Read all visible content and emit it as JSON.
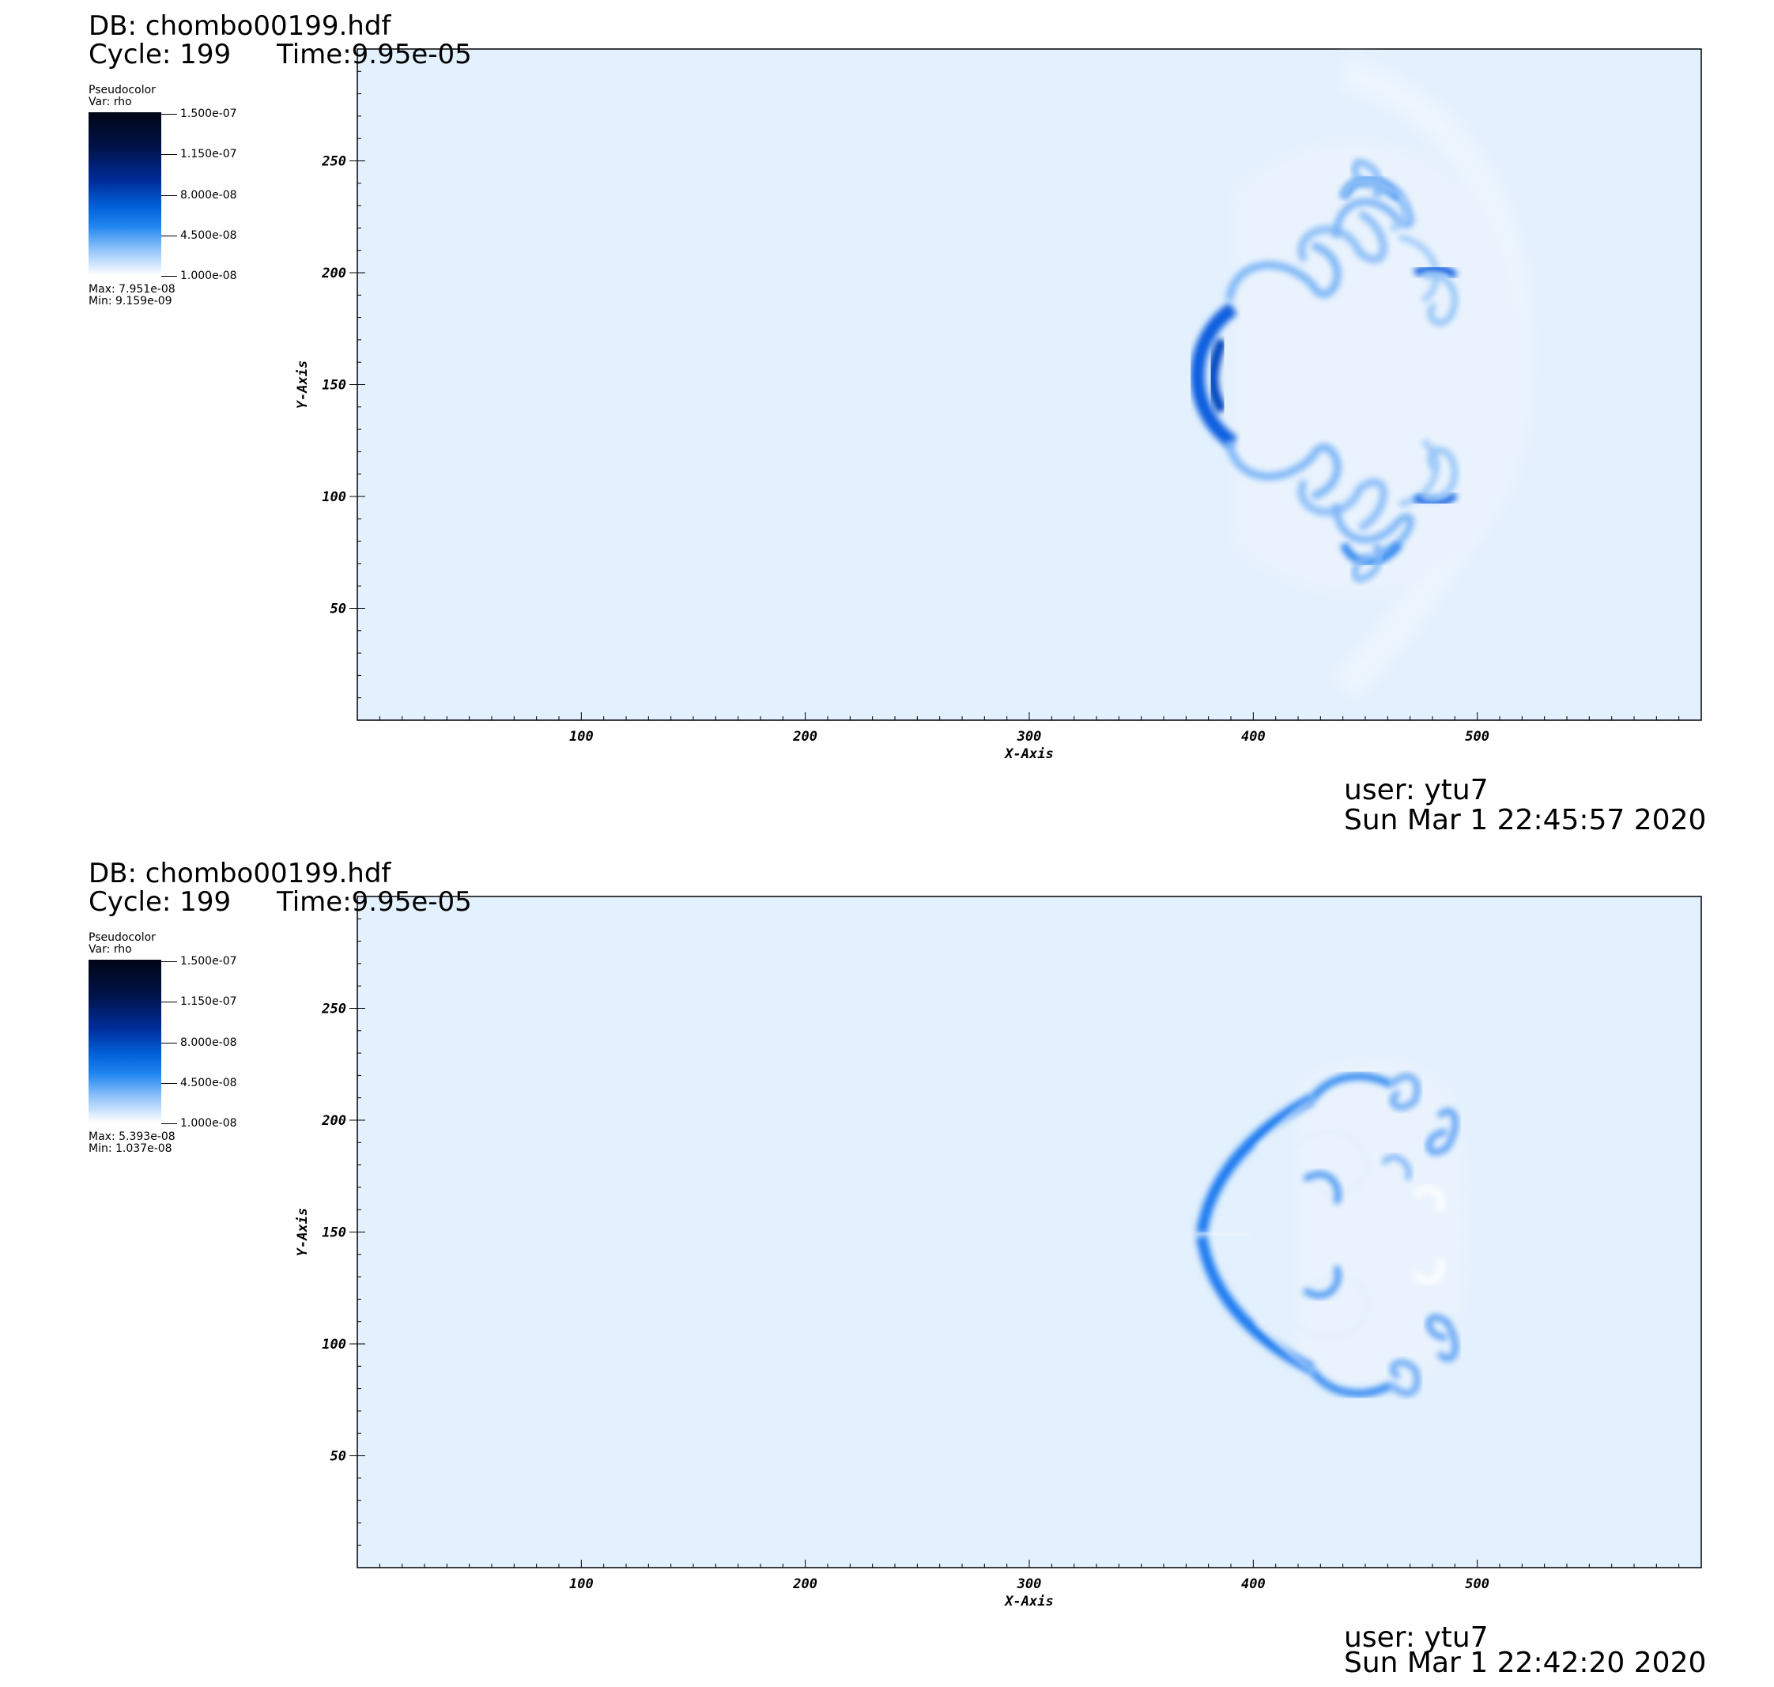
{
  "plots": [
    {
      "db": "DB: chombo00199.hdf",
      "cycle": "Cycle: 199",
      "time": "Time:9.95e-05",
      "legend": {
        "name": "Pseudocolor",
        "var": "Var: rho",
        "ticks": [
          "1.500e-07",
          "1.150e-07",
          "8.000e-08",
          "4.500e-08",
          "1.000e-08"
        ],
        "max": "Max:  7.951e-08",
        "min": "Min:  9.159e-09"
      },
      "user": "user: ytu7",
      "date": "Sun Mar  1 22:45:57 2020"
    },
    {
      "db": "DB: chombo00199.hdf",
      "cycle": "Cycle: 199",
      "time": "Time:9.95e-05",
      "legend": {
        "name": "Pseudocolor",
        "var": "Var: rho",
        "ticks": [
          "1.500e-07",
          "1.150e-07",
          "8.000e-08",
          "4.500e-08",
          "1.000e-08"
        ],
        "max": "Max:  5.393e-08",
        "min": "Min:  1.037e-08"
      },
      "user": "user: ytu7",
      "date": "Sun Mar  1 22:42:20 2020"
    }
  ],
  "axes": {
    "xlabel": "X-Axis",
    "ylabel": "Y-Axis",
    "xticks": [
      "100",
      "200",
      "300",
      "400",
      "500"
    ],
    "yticks": [
      "250",
      "200",
      "150",
      "100",
      "50"
    ],
    "xlim": [
      0,
      600
    ],
    "ylim": [
      0,
      300
    ]
  },
  "colors": {
    "field_background": "#e3f0fd",
    "feature_blue": "#1a7cf0",
    "feature_dark": "#0050c8"
  }
}
